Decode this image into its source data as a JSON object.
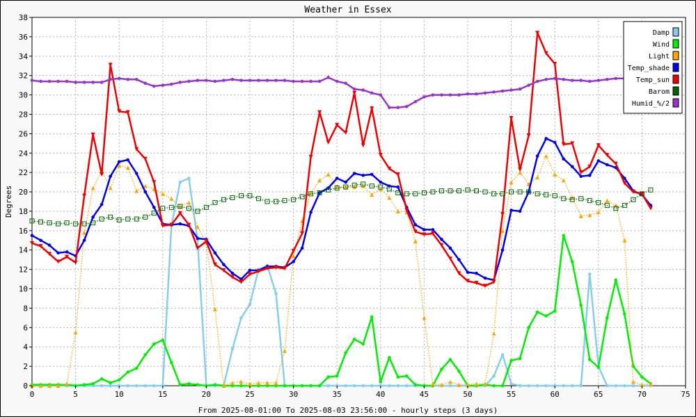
{
  "chart_data": {
    "type": "line",
    "title": "Weather in Essex",
    "xlabel": "From 2025-08-01:00 To 2025-08-03 23:56:00 - hourly steps (3 days)",
    "ylabel": "Degrees",
    "xlim": [
      0,
      75
    ],
    "ylim": [
      0,
      38
    ],
    "xticks": [
      0,
      5,
      10,
      15,
      20,
      25,
      30,
      35,
      40,
      45,
      50,
      55,
      60,
      65,
      70,
      75
    ],
    "yticks": [
      0,
      2,
      4,
      6,
      8,
      10,
      12,
      14,
      16,
      18,
      20,
      22,
      24,
      26,
      28,
      30,
      32,
      34,
      36,
      38
    ],
    "grid": true,
    "legend_position": "top-right",
    "series": [
      {
        "name": "Damp",
        "color": "#87ceeb",
        "style": "solid",
        "marker": "circle",
        "values": [
          0,
          0,
          0,
          0,
          0,
          0,
          0,
          0,
          0,
          0,
          0,
          0,
          0,
          0,
          0,
          0,
          16.5,
          21,
          21.4,
          15,
          0,
          0,
          0,
          3.8,
          7,
          8.4,
          12,
          12.4,
          9.5,
          0,
          0,
          0,
          0,
          0,
          0,
          0,
          0,
          0,
          0,
          0,
          0,
          0,
          0,
          0,
          0,
          0,
          0,
          0,
          0,
          0,
          0,
          0,
          0,
          1,
          3.2,
          0.2,
          0,
          0,
          0,
          0,
          0,
          0,
          0,
          0,
          11.5,
          2,
          0,
          0,
          0,
          0,
          0,
          0
        ]
      },
      {
        "name": "Wind",
        "color": "#00ee00",
        "style": "solid",
        "marker": "circle",
        "values": [
          0.1,
          0.1,
          0.1,
          0.1,
          0.1,
          0,
          0.1,
          0.2,
          0.7,
          0.3,
          0.6,
          1.4,
          1.8,
          3.2,
          4.3,
          4.7,
          2.4,
          0.1,
          0.2,
          0.1,
          0,
          0.1,
          0,
          0,
          0,
          0,
          0,
          0,
          0,
          0,
          0,
          0,
          0,
          0,
          0.9,
          1,
          3.4,
          4.8,
          4.3,
          7.1,
          0.4,
          2.9,
          0.9,
          1,
          0.1,
          0,
          0,
          1.7,
          2.7,
          1.5,
          0,
          0,
          0.1,
          0,
          0,
          2.6,
          2.8,
          6,
          7.6,
          7.2,
          7.7,
          15.5,
          12.8,
          8.3,
          2.7,
          1.9,
          7,
          10.9,
          7.4,
          2,
          0.9,
          0.2
        ]
      },
      {
        "name": "Light",
        "color": "#ffa500",
        "style": "dotted",
        "marker": "triangle",
        "values": [
          0,
          0,
          0,
          0,
          0.2,
          5.5,
          15.8,
          20.4,
          22.2,
          20.4,
          22.7,
          22.5,
          20.1,
          20.6,
          20.3,
          19.8,
          19.3,
          18.5,
          18.9,
          16.4,
          14.8,
          7.9,
          0,
          0.3,
          0.4,
          0.2,
          0.3,
          0.3,
          0.3,
          3.6,
          13.4,
          17,
          19.9,
          21.2,
          21.8,
          20.5,
          20.5,
          20.5,
          20.6,
          19.7,
          20.3,
          19.4,
          18,
          17.9,
          14.9,
          7,
          0.2,
          0.1,
          0.4,
          0.1,
          0.1,
          0.2,
          0.2,
          5.4,
          16,
          21,
          22,
          20.8,
          21.5,
          23.7,
          21.8,
          21.2,
          19.4,
          17.5,
          17.6,
          17.9,
          19.1,
          18.6,
          15,
          0.4,
          0.1,
          0.2
        ]
      },
      {
        "name": "Temp_shade",
        "color": "#0000ee",
        "style": "solid",
        "marker": "circle",
        "values": [
          15.5,
          15,
          14.5,
          13.7,
          13.8,
          13.4,
          15,
          17.4,
          18.7,
          21.6,
          23.1,
          23.3,
          21.9,
          20,
          18.4,
          16.7,
          16.6,
          16.7,
          16.5,
          15.2,
          15.1,
          13.7,
          12.5,
          11.6,
          11,
          11.9,
          11.9,
          12.3,
          12.3,
          12.2,
          12.8,
          14.2,
          17.9,
          19.9,
          20.4,
          21.4,
          21,
          21.9,
          21.7,
          21.8,
          21,
          20.6,
          20.5,
          18.4,
          16.6,
          16.1,
          16.1,
          15.1,
          14.2,
          13,
          11.7,
          11.6,
          11.1,
          10.9,
          14,
          18.1,
          18,
          20,
          23.7,
          25.5,
          25.1,
          23.4,
          22.6,
          21.6,
          21.7,
          23.2,
          22.8,
          22.5,
          21.4,
          20.1,
          19.7,
          18.6
        ]
      },
      {
        "name": "Temp_sun",
        "color": "#ee0000",
        "style": "solid",
        "marker": "triangle-down",
        "values": [
          14.7,
          14.4,
          13.6,
          12.8,
          13.3,
          12.7,
          19.6,
          25.9,
          21.8,
          33.1,
          28.3,
          28.2,
          24.4,
          23.4,
          21,
          16.5,
          16.6,
          17.8,
          16.6,
          14.2,
          14.9,
          12.5,
          11.9,
          11.2,
          10.7,
          11.5,
          11.8,
          12.1,
          12.2,
          12.1,
          13.9,
          15.7,
          23.6,
          28.2,
          25.1,
          26.9,
          26.1,
          30.2,
          24.8,
          28.6,
          23.8,
          22.4,
          21.8,
          18.1,
          15.9,
          15.6,
          15.7,
          14.5,
          13.1,
          11.6,
          10.8,
          10.6,
          10.3,
          10.7,
          17.7,
          27.6,
          22.3,
          25.8,
          36.4,
          34.3,
          33.2,
          24.9,
          25,
          22,
          22.6,
          24.8,
          23.8,
          22.9,
          20.9,
          20,
          19.8,
          18.3
        ]
      },
      {
        "name": "Barom",
        "color": "#006400",
        "style": "dotted",
        "marker": "square",
        "values": [
          17,
          16.9,
          16.8,
          16.7,
          16.8,
          16.7,
          16.7,
          16.8,
          17.2,
          17.4,
          17.1,
          17.2,
          17.2,
          17.4,
          17.8,
          18.3,
          18.4,
          18.5,
          18.3,
          18,
          18.4,
          18.9,
          19.2,
          19.4,
          19.6,
          19.6,
          19.3,
          19,
          19,
          19.1,
          19.2,
          19.5,
          19.8,
          19.9,
          20.2,
          20.4,
          20.5,
          20.7,
          20.8,
          20.6,
          20.5,
          20.3,
          19.9,
          19.8,
          19.8,
          19.9,
          20,
          20.1,
          20.1,
          20.1,
          20.2,
          20.1,
          20,
          19.8,
          19.8,
          20,
          20,
          20,
          19.8,
          19.7,
          19.6,
          19.3,
          19.2,
          19.3,
          19.1,
          18.9,
          18.6,
          18.3,
          18.6,
          19.2,
          19.8,
          20.2
        ]
      },
      {
        "name": "Humid_%/2",
        "color": "#9932cc",
        "style": "solid",
        "marker": "circle",
        "values": [
          31.5,
          31.4,
          31.4,
          31.4,
          31.4,
          31.3,
          31.3,
          31.3,
          31.3,
          31.6,
          31.7,
          31.6,
          31.6,
          31.2,
          30.9,
          31,
          31.1,
          31.3,
          31.4,
          31.5,
          31.5,
          31.4,
          31.5,
          31.6,
          31.5,
          31.5,
          31.5,
          31.5,
          31.5,
          31.5,
          31.4,
          31.4,
          31.4,
          31.4,
          31.8,
          31.4,
          31.2,
          30.6,
          30.5,
          30.2,
          30,
          28.7,
          28.7,
          28.8,
          29.3,
          29.8,
          30,
          30,
          30,
          30,
          30.1,
          30.1,
          30.2,
          30.3,
          30.4,
          30.5,
          30.6,
          31,
          31.4,
          31.6,
          31.7,
          31.6,
          31.5,
          31.5,
          31.4,
          31.5,
          31.6,
          31.7,
          31.7,
          31.7,
          31.8,
          31.8
        ]
      }
    ]
  }
}
